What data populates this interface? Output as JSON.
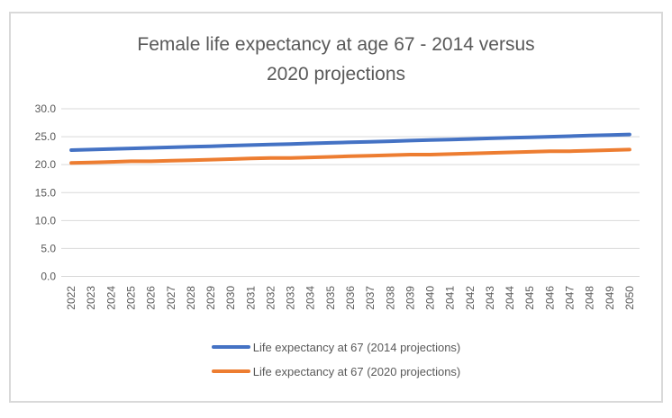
{
  "chart_data": {
    "type": "line",
    "title": "Female life expectancy at age 67 - 2014 versus 2020 projections",
    "title_lines": [
      "Female life expectancy at age 67 - 2014 versus",
      "2020 projections"
    ],
    "categories": [
      "2022",
      "2023",
      "2024",
      "2025",
      "2026",
      "2027",
      "2028",
      "2029",
      "2030",
      "2031",
      "2032",
      "2033",
      "2034",
      "2035",
      "2036",
      "2037",
      "2038",
      "2039",
      "2040",
      "2041",
      "2042",
      "2043",
      "2044",
      "2045",
      "2046",
      "2047",
      "2048",
      "2049",
      "2050"
    ],
    "series": [
      {
        "name": "Life expectancy at 67 (2014 projections)",
        "color": "#4472C4",
        "values": [
          22.6,
          22.7,
          22.8,
          22.9,
          23.0,
          23.1,
          23.2,
          23.3,
          23.4,
          23.5,
          23.6,
          23.7,
          23.8,
          23.9,
          24.0,
          24.1,
          24.2,
          24.3,
          24.4,
          24.5,
          24.6,
          24.7,
          24.8,
          24.9,
          25.0,
          25.1,
          25.2,
          25.3,
          25.4
        ]
      },
      {
        "name": "Life expectancy at 67 (2020 projections)",
        "color": "#ED7D31",
        "values": [
          20.3,
          20.4,
          20.5,
          20.6,
          20.6,
          20.7,
          20.8,
          20.9,
          21.0,
          21.1,
          21.2,
          21.2,
          21.3,
          21.4,
          21.5,
          21.6,
          21.7,
          21.8,
          21.8,
          21.9,
          22.0,
          22.1,
          22.2,
          22.3,
          22.4,
          22.4,
          22.5,
          22.6,
          22.7
        ]
      }
    ],
    "xlabel": "",
    "ylabel": "",
    "ylim": [
      0,
      30
    ],
    "ytick_step": 5,
    "ytick_labels": [
      "0.0",
      "5.0",
      "10.0",
      "15.0",
      "20.0",
      "25.0",
      "30.0"
    ],
    "grid": true,
    "legend_position": "bottom",
    "title_color": "#595959",
    "axis_label_color": "#595959",
    "gridline_color": "#D9D9D9",
    "frame_border_color": "#D9D9D9"
  }
}
